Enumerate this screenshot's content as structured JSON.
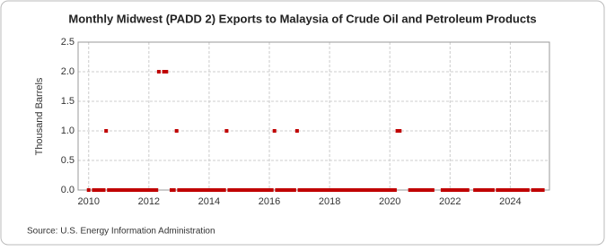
{
  "chart_data": {
    "type": "scatter",
    "title": "Monthly Midwest (PADD 2) Exports to Malaysia of Crude Oil and Petroleum Products",
    "y_label": "Thousand Barrels",
    "source": "Source: U.S. Energy Information Administration",
    "color": "#c00000",
    "grid": true,
    "xlim": [
      2009.65,
      2025.3
    ],
    "xticks": [
      2010,
      2012,
      2014,
      2016,
      2018,
      2020,
      2022,
      2024
    ],
    "ylim": [
      0,
      2.5
    ],
    "yticks": [
      {
        "value": 0,
        "label": "0.0"
      },
      0.5,
      {
        "value": 1,
        "label": "1.0"
      },
      1.5,
      {
        "value": 2,
        "label": "2.0"
      },
      2.5
    ],
    "x": [
      2010,
      2010.08,
      2010.17,
      2010.25,
      2010.33,
      2010.42,
      2010.5,
      2010.58,
      2010.67,
      2010.75,
      2010.83,
      2010.92,
      2011,
      2011.08,
      2011.17,
      2011.25,
      2011.33,
      2011.42,
      2011.5,
      2011.58,
      2011.67,
      2011.75,
      2011.83,
      2011.92,
      2012,
      2012.08,
      2012.17,
      2012.25,
      2012.33,
      2012.42,
      2012.5,
      2012.58,
      2012.67,
      2012.75,
      2012.83,
      2012.92,
      2013,
      2013.08,
      2013.17,
      2013.25,
      2013.33,
      2013.42,
      2013.5,
      2013.58,
      2013.67,
      2013.75,
      2013.83,
      2013.92,
      2014,
      2014.08,
      2014.17,
      2014.25,
      2014.33,
      2014.42,
      2014.5,
      2014.58,
      2014.67,
      2014.75,
      2014.83,
      2014.92,
      2015,
      2015.08,
      2015.17,
      2015.25,
      2015.33,
      2015.42,
      2015.5,
      2015.58,
      2015.67,
      2015.75,
      2015.83,
      2015.92,
      2016,
      2016.08,
      2016.17,
      2016.25,
      2016.33,
      2016.42,
      2016.5,
      2016.58,
      2016.67,
      2016.75,
      2016.83,
      2016.92,
      2017,
      2017.08,
      2017.17,
      2017.25,
      2017.33,
      2017.42,
      2017.5,
      2017.58,
      2017.67,
      2017.75,
      2017.83,
      2017.92,
      2018,
      2018.08,
      2018.17,
      2018.25,
      2018.33,
      2018.42,
      2018.5,
      2018.58,
      2018.67,
      2018.75,
      2018.83,
      2018.92,
      2019,
      2019.08,
      2019.17,
      2019.25,
      2019.33,
      2019.42,
      2019.5,
      2019.58,
      2019.67,
      2019.75,
      2019.83,
      2019.92,
      2020,
      2020.08,
      2020.17,
      2020.25,
      2020.33,
      2020.42,
      2020.5,
      2020.58,
      2020.67,
      2020.75,
      2020.83,
      2020.92,
      2021,
      2021.08,
      2021.17,
      2021.25,
      2021.33,
      2021.42,
      2021.5,
      2021.58,
      2021.67,
      2021.75,
      2021.83,
      2021.92,
      2022,
      2022.08,
      2022.17,
      2022.25,
      2022.33,
      2022.42,
      2022.5,
      2022.58,
      2022.67,
      2022.75,
      2022.83,
      2022.92,
      2023,
      2023.08,
      2023.17,
      2023.25,
      2023.33,
      2023.42,
      2023.5,
      2023.58,
      2023.67,
      2023.75,
      2023.83,
      2023.92,
      2024,
      2024.08,
      2024.17,
      2024.25,
      2024.33,
      2024.42,
      2024.5,
      2024.58,
      2024.67,
      2024.75,
      2024.83,
      2024.92,
      2025,
      2025.08
    ],
    "values": [
      0,
      null,
      0,
      0,
      0,
      0,
      0,
      1,
      0,
      0,
      0,
      0,
      0,
      0,
      0,
      0,
      0,
      0,
      0,
      0,
      0,
      0,
      0,
      0,
      0,
      0,
      0,
      0,
      2,
      null,
      2,
      2,
      null,
      0,
      0,
      1,
      0,
      0,
      0,
      0,
      0,
      0,
      0,
      0,
      0,
      0,
      0,
      0,
      0,
      0,
      0,
      0,
      0,
      0,
      0,
      1,
      0,
      0,
      0,
      0,
      0,
      0,
      0,
      0,
      0,
      0,
      0,
      0,
      0,
      0,
      0,
      0,
      0,
      0,
      1,
      0,
      0,
      0,
      0,
      0,
      0,
      0,
      0,
      1,
      0,
      0,
      0,
      0,
      0,
      0,
      0,
      0,
      0,
      0,
      0,
      0,
      0,
      0,
      0,
      0,
      0,
      0,
      0,
      0,
      0,
      0,
      0,
      0,
      0,
      0,
      0,
      0,
      0,
      0,
      0,
      0,
      0,
      0,
      0,
      0,
      0,
      0,
      0,
      1,
      1,
      null,
      null,
      null,
      0,
      0,
      0,
      0,
      0,
      0,
      0,
      0,
      0,
      0,
      null,
      null,
      null,
      0,
      0,
      0,
      0,
      0,
      0,
      0,
      0,
      0,
      0,
      0,
      null,
      null,
      0,
      0,
      0,
      0,
      0,
      0,
      0,
      0,
      null,
      0,
      0,
      0,
      0,
      0,
      0,
      0,
      0,
      0,
      0,
      0,
      0,
      0,
      null,
      0,
      0,
      0,
      0,
      0
    ]
  }
}
